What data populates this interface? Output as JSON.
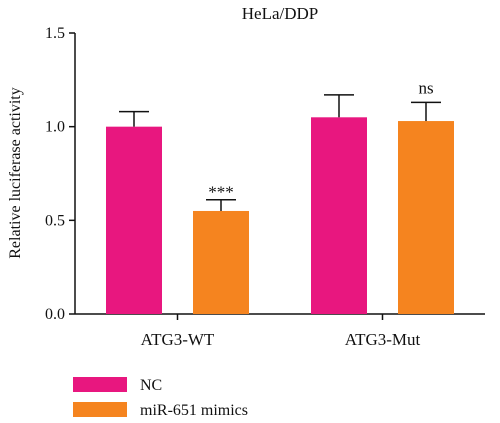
{
  "chart_data": {
    "type": "bar",
    "title": "HeLa/DDP",
    "xlabel": "",
    "ylabel": "Relative luciferase activity",
    "ylim": [
      0,
      1.5
    ],
    "yticks": [
      "0.0",
      "0.5",
      "1.0",
      "1.5"
    ],
    "categories": [
      "ATG3-WT",
      "ATG3-Mut"
    ],
    "series": [
      {
        "name": "NC",
        "color": "#e8177f",
        "values": [
          1.0,
          1.05
        ],
        "errors": [
          0.08,
          0.12
        ]
      },
      {
        "name": "miR-651 mimics",
        "color": "#f5841f",
        "values": [
          0.55,
          1.03
        ],
        "errors": [
          0.06,
          0.1
        ]
      }
    ],
    "annotations": [
      {
        "category_index": 0,
        "series_index": 1,
        "text": "***"
      },
      {
        "category_index": 1,
        "series_index": 1,
        "text": "ns"
      }
    ],
    "legend_position": "bottom-left",
    "grid": false
  }
}
